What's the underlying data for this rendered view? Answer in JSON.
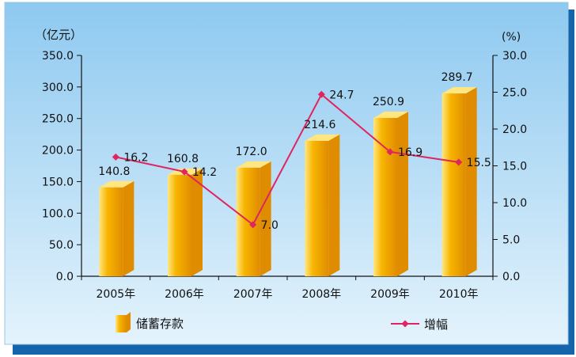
{
  "chart_data": {
    "type": "bar",
    "categories": [
      "2005年",
      "2006年",
      "2007年",
      "2008年",
      "2009年",
      "2010年"
    ],
    "left_axis": {
      "unit_label": "（亿元）",
      "ylim": [
        0,
        350
      ],
      "ticks": [
        "0.0",
        "50.0",
        "100.0",
        "150.0",
        "200.0",
        "250.0",
        "300.0",
        "350.0"
      ]
    },
    "right_axis": {
      "unit_label": "(%)",
      "ylim": [
        0,
        30
      ],
      "ticks": [
        "0.0",
        "5.0",
        "10.0",
        "15.0",
        "20.0",
        "25.0",
        "30.0"
      ]
    },
    "series": [
      {
        "name": "储蓄存款",
        "type": "bar",
        "axis": "left",
        "values": [
          140.8,
          160.8,
          172.0,
          214.6,
          250.9,
          289.7
        ],
        "labels": [
          "140.8",
          "160.8",
          "172.0",
          "214.6",
          "250.9",
          "289.7"
        ]
      },
      {
        "name": "增幅",
        "type": "line",
        "axis": "right",
        "values": [
          16.2,
          14.2,
          7.0,
          24.7,
          16.9,
          15.5
        ],
        "labels": [
          "16.2",
          "14.2",
          "7.0",
          "24.7",
          "16.9",
          "15.5"
        ]
      }
    ],
    "grid": false,
    "legend_position": "bottom"
  },
  "colors": {
    "panel_top": "#8ec9f0",
    "panel_bottom": "#e4f3fc",
    "shadow": "#1565ad",
    "bar_light": "#ffe680",
    "bar_main": "#f7b500",
    "bar_dark": "#e08c00",
    "line": "#e0245e"
  }
}
